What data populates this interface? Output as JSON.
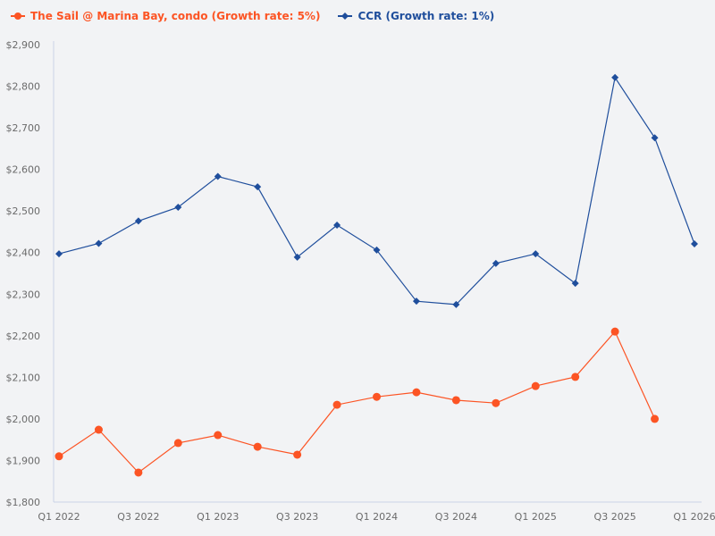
{
  "legend": [
    {
      "label": "The Sail @ Marina Bay, condo (Growth rate: 5%)",
      "color": "#fc5424",
      "marker": "circle"
    },
    {
      "label": "CCR (Growth rate: 1%)",
      "color": "#1f4e9c",
      "marker": "diamond"
    }
  ],
  "chart_data": {
    "type": "line",
    "title": "",
    "xlabel": "",
    "ylabel": "",
    "ylim": [
      1800,
      2900
    ],
    "y_ticks": [
      1800,
      1900,
      2000,
      2100,
      2200,
      2300,
      2400,
      2500,
      2600,
      2700,
      2800,
      2900
    ],
    "y_tick_labels": [
      "$1,800",
      "$1,900",
      "$2,000",
      "$2,100",
      "$2,200",
      "$2,300",
      "$2,400",
      "$2,500",
      "$2,600",
      "$2,700",
      "$2,800",
      "$2,900"
    ],
    "categories": [
      "Q1 2022",
      "Q2 2022",
      "Q3 2022",
      "Q4 2022",
      "Q1 2023",
      "Q2 2023",
      "Q3 2023",
      "Q4 2023",
      "Q1 2024",
      "Q2 2024",
      "Q3 2024",
      "Q4 2024",
      "Q1 2025",
      "Q2 2025",
      "Q3 2025",
      "Q4 2025",
      "Q1 2026"
    ],
    "x_tick_labels_shown": [
      "Q1 2022",
      "Q3 2022",
      "Q1 2023",
      "Q3 2023",
      "Q1 2024",
      "Q3 2024",
      "Q1 2025",
      "Q3 2025",
      "Q1 2026"
    ],
    "grid": false,
    "legend_position": "top-left",
    "series": [
      {
        "name": "The Sail @ Marina Bay, condo (Growth rate: 5%)",
        "color": "#fc5424",
        "marker": "circle",
        "values": [
          1910,
          1974,
          1871,
          1942,
          1961,
          1933,
          1914,
          2034,
          2053,
          2064,
          2045,
          2038,
          2079,
          2101,
          2210,
          2000,
          null
        ]
      },
      {
        "name": "CCR (Growth rate: 1%)",
        "color": "#1f4e9c",
        "marker": "diamond",
        "values": [
          2397,
          2422,
          2476,
          2509,
          2583,
          2558,
          2389,
          2466,
          2406,
          2283,
          2275,
          2374,
          2397,
          2326,
          2821,
          2676,
          2421
        ]
      }
    ]
  }
}
